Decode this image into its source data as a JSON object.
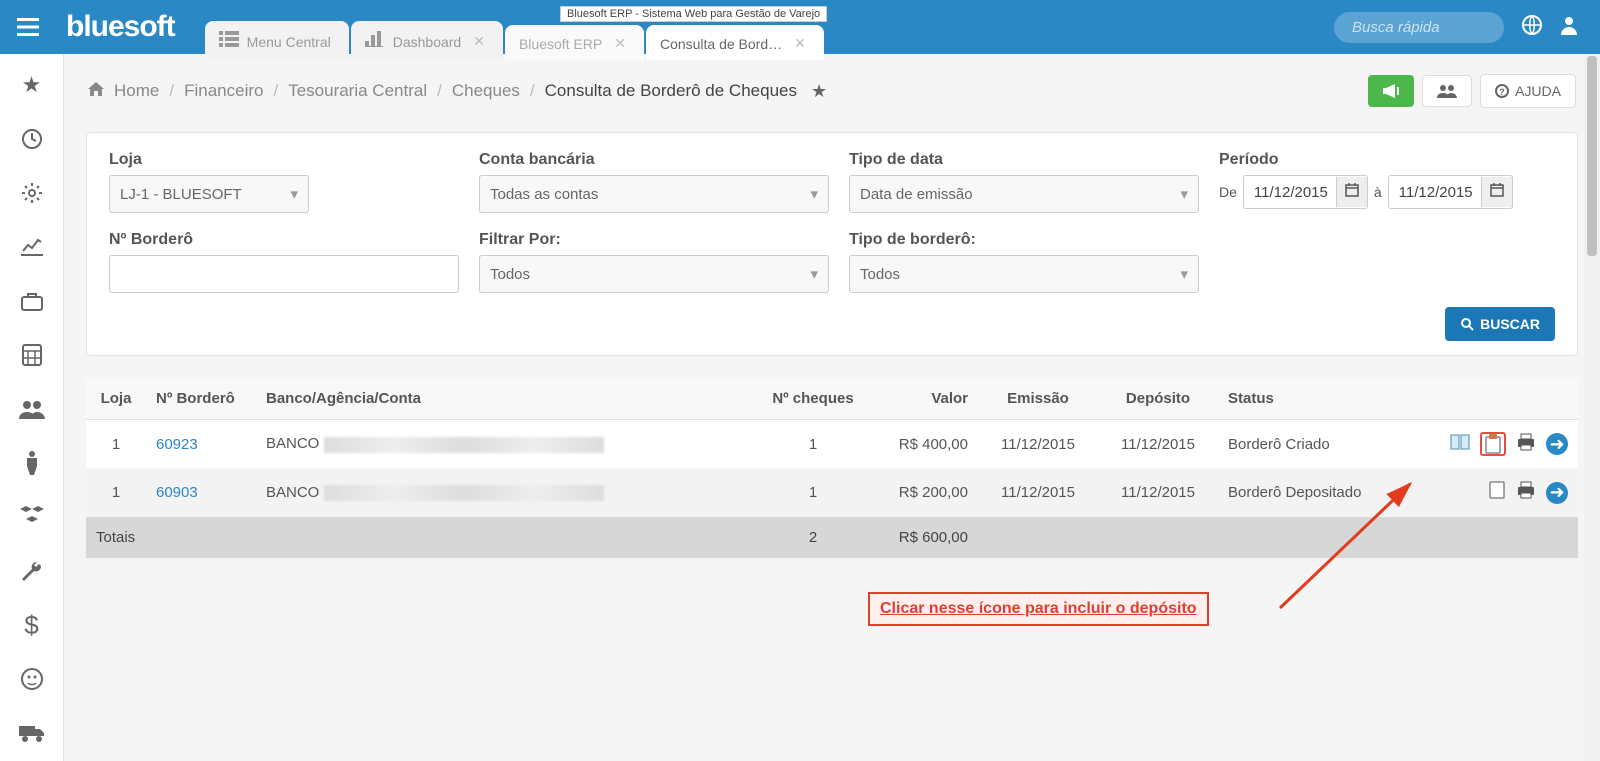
{
  "topnav": {
    "logo": "bluesoft",
    "tabs": [
      {
        "label": "Menu Central",
        "icon": "list"
      },
      {
        "label": "Dashboard",
        "icon": "bar-chart"
      },
      {
        "label": "Bluesoft ERP",
        "icon": ""
      },
      {
        "label": "Consulta de Bord…",
        "icon": ""
      }
    ],
    "tooltip": "Bluesoft ERP - Sistema Web para Gestão de Varejo",
    "search_placeholder": "Busca rápida"
  },
  "breadcrumbs": {
    "home": "Home",
    "parts": [
      "Financeiro",
      "Tesouraria Central",
      "Cheques"
    ],
    "current": "Consulta de Borderô de Cheques",
    "help_label": "AJUDA"
  },
  "filters": {
    "loja_label": "Loja",
    "loja_value": "LJ-1 - BLUESOFT",
    "conta_label": "Conta bancária",
    "conta_value": "Todas as contas",
    "tipo_data_label": "Tipo de data",
    "tipo_data_value": "Data de emissão",
    "periodo_label": "Período",
    "periodo_de_label": "De",
    "periodo_de_value": "11/12/2015",
    "periodo_a_label": "à",
    "periodo_a_value": "11/12/2015",
    "n_bordero_label": "Nº Borderô",
    "filtrar_label": "Filtrar Por:",
    "filtrar_value": "Todos",
    "tipo_bordero_label": "Tipo de borderô:",
    "tipo_bordero_value": "Todos",
    "buscar_label": "BUSCAR"
  },
  "table": {
    "headers": {
      "loja": "Loja",
      "n_bordero": "Nº Borderô",
      "banco": "Banco/Agência/Conta",
      "n_cheques": "Nº cheques",
      "valor": "Valor",
      "emissao": "Emissão",
      "deposito": "Depósito",
      "status": "Status"
    },
    "rows": [
      {
        "loja": "1",
        "n_bordero": "60923",
        "banco": "BANCO",
        "n_cheques": "1",
        "valor": "R$ 400,00",
        "emissao": "11/12/2015",
        "deposito": "11/12/2015",
        "status": "Borderô Criado",
        "show_deposit": true
      },
      {
        "loja": "1",
        "n_bordero": "60903",
        "banco": "BANCO",
        "n_cheques": "1",
        "valor": "R$ 200,00",
        "emissao": "11/12/2015",
        "deposito": "11/12/2015",
        "status": "Borderô Depositado",
        "show_deposit": false
      }
    ],
    "totals_label": "Totais",
    "totals_cheques": "2",
    "totals_valor": "R$ 600,00"
  },
  "callout_text": "Clicar nesse ícone para incluir o depósito",
  "colors": {
    "topnav_bg": "#2a88c4",
    "btn_green": "#4cb84c",
    "btn_blue": "#1b77b6",
    "link": "#2a88c4",
    "callout_border": "#d9432c"
  }
}
